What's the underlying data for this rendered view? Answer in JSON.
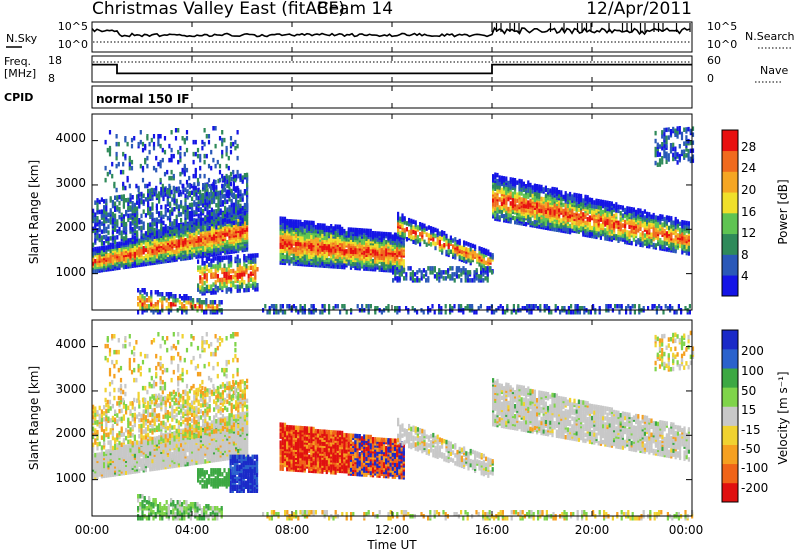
{
  "header": {
    "title": "Christmas Valley East (fitACF)",
    "beam": "Beam 14",
    "date": "12/Apr/2011"
  },
  "strip_panels": {
    "nsky_label": "N.Sky",
    "nsearch_label": "N.Search",
    "nsky_ticks": [
      "10^5",
      "10^0"
    ],
    "freq_label": [
      "Freq.",
      "[MHz]"
    ],
    "freq_ticks": [
      "18",
      "8"
    ],
    "nave_label": "Nave",
    "nave_ticks": [
      "60",
      "0"
    ],
    "cpid_label": "CPID",
    "cpid_text": "normal 150 IF"
  },
  "time_axis": {
    "label": "Time UT",
    "ticks": [
      "00:00",
      "04:00",
      "08:00",
      "12:00",
      "16:00",
      "20:00",
      "00:00"
    ],
    "range_hours": [
      0,
      24
    ]
  },
  "chart_data": [
    {
      "type": "heatmap",
      "name": "power",
      "ylabel": "Slant Range [km]",
      "yticks": [
        "1000",
        "2000",
        "3000",
        "4000"
      ],
      "ylim": [
        180,
        4600
      ],
      "xlim_hours": [
        0,
        24
      ],
      "colorbar_label": "Power [dB]",
      "colorbar_ticks": [
        "4",
        "8",
        "12",
        "16",
        "20",
        "24",
        "28"
      ],
      "colors": [
        "#1414e6",
        "#2a58b8",
        "#2f8a5a",
        "#5fc452",
        "#f0e02a",
        "#f5a623",
        "#f06a1e",
        "#e81010"
      ]
    },
    {
      "type": "heatmap",
      "name": "velocity",
      "ylabel": "Slant Range [km]",
      "yticks": [
        "1000",
        "2000",
        "3000",
        "4000"
      ],
      "ylim": [
        180,
        4600
      ],
      "xlim_hours": [
        0,
        24
      ],
      "colorbar_label": "Velocity [m s⁻¹]",
      "colorbar_ticks": [
        "200",
        "100",
        "50",
        "15",
        "-15",
        "-50",
        "-100",
        "-200"
      ],
      "colors": [
        "#1a2ac8",
        "#2a62cc",
        "#3ca843",
        "#7fd44a",
        "#c8c8c8",
        "#f0d230",
        "#f5a020",
        "#f06418",
        "#e01010"
      ]
    },
    {
      "type": "line",
      "name": "nsky-nsearch",
      "ylim_log10": [
        0,
        5
      ]
    },
    {
      "type": "line",
      "name": "freq-nave",
      "frequency_step": [
        {
          "start_hour": 0,
          "end_hour": 1,
          "mhz": 15
        },
        {
          "start_hour": 1,
          "end_hour": 16,
          "mhz": 11
        },
        {
          "start_hour": 16,
          "end_hour": 24,
          "mhz": 15
        }
      ]
    }
  ]
}
